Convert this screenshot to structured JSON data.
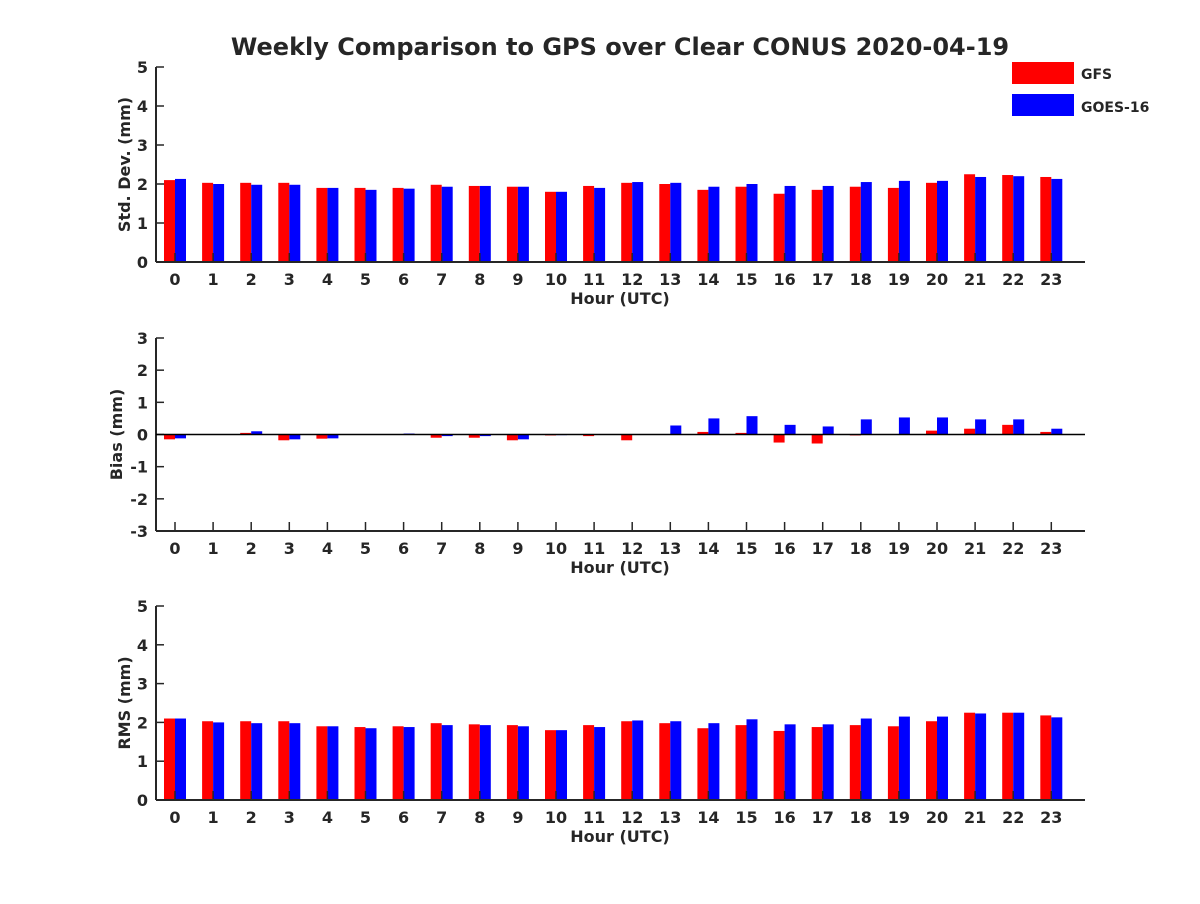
{
  "figure": {
    "title": "Weekly Comparison to GPS over Clear CONUS 2020-04-19"
  },
  "legend": {
    "placement": "top-right",
    "entries": [
      {
        "name": "GFS",
        "color": "#ff0000"
      },
      {
        "name": "GOES-16",
        "color": "#0000ff"
      }
    ]
  },
  "chart_data": [
    {
      "type": "bar",
      "xlabel": "Hour (UTC)",
      "ylabel": "Std. Dev. (mm)",
      "ylim": [
        0,
        5
      ],
      "yticks": [
        0,
        1,
        2,
        3,
        4,
        5
      ],
      "categories": [
        "0",
        "1",
        "2",
        "3",
        "4",
        "5",
        "6",
        "7",
        "8",
        "9",
        "10",
        "11",
        "12",
        "13",
        "14",
        "15",
        "16",
        "17",
        "18",
        "19",
        "20",
        "21",
        "22",
        "23"
      ],
      "series": [
        {
          "name": "GFS",
          "color": "#ff0000",
          "values": [
            2.1,
            2.03,
            2.03,
            2.03,
            1.9,
            1.9,
            1.9,
            1.98,
            1.95,
            1.93,
            1.8,
            1.95,
            2.03,
            2.0,
            1.85,
            1.93,
            1.75,
            1.85,
            1.93,
            1.9,
            2.03,
            2.25,
            2.23,
            2.18
          ]
        },
        {
          "name": "GOES-16",
          "color": "#0000ff",
          "values": [
            2.13,
            2.0,
            1.98,
            1.98,
            1.9,
            1.85,
            1.88,
            1.93,
            1.95,
            1.93,
            1.8,
            1.9,
            2.05,
            2.03,
            1.93,
            2.0,
            1.95,
            1.95,
            2.05,
            2.08,
            2.08,
            2.18,
            2.2,
            2.13
          ]
        }
      ]
    },
    {
      "type": "bar",
      "xlabel": "Hour (UTC)",
      "ylabel": "Bias (mm)",
      "ylim": [
        -3,
        3
      ],
      "yticks": [
        -3,
        -2,
        -1,
        0,
        1,
        2,
        3
      ],
      "categories": [
        "0",
        "1",
        "2",
        "3",
        "4",
        "5",
        "6",
        "7",
        "8",
        "9",
        "10",
        "11",
        "12",
        "13",
        "14",
        "15",
        "16",
        "17",
        "18",
        "19",
        "20",
        "21",
        "22",
        "23"
      ],
      "series": [
        {
          "name": "GFS",
          "color": "#ff0000",
          "values": [
            -0.15,
            0.0,
            0.05,
            -0.18,
            -0.13,
            0.0,
            0.0,
            -0.1,
            -0.1,
            -0.18,
            -0.03,
            -0.05,
            -0.18,
            0.0,
            0.08,
            0.05,
            -0.25,
            -0.28,
            -0.03,
            0.0,
            0.12,
            0.18,
            0.3,
            0.08
          ]
        },
        {
          "name": "GOES-16",
          "color": "#0000ff",
          "values": [
            -0.12,
            0.0,
            0.1,
            -0.15,
            -0.12,
            0.0,
            0.03,
            -0.05,
            -0.05,
            -0.15,
            -0.02,
            0.0,
            0.0,
            0.28,
            0.5,
            0.57,
            0.3,
            0.25,
            0.47,
            0.53,
            0.53,
            0.47,
            0.47,
            0.18
          ]
        }
      ]
    },
    {
      "type": "bar",
      "xlabel": "Hour (UTC)",
      "ylabel": "RMS (mm)",
      "ylim": [
        0,
        5
      ],
      "yticks": [
        0,
        1,
        2,
        3,
        4,
        5
      ],
      "categories": [
        "0",
        "1",
        "2",
        "3",
        "4",
        "5",
        "6",
        "7",
        "8",
        "9",
        "10",
        "11",
        "12",
        "13",
        "14",
        "15",
        "16",
        "17",
        "18",
        "19",
        "20",
        "21",
        "22",
        "23"
      ],
      "series": [
        {
          "name": "GFS",
          "color": "#ff0000",
          "values": [
            2.1,
            2.03,
            2.03,
            2.03,
            1.9,
            1.88,
            1.9,
            1.98,
            1.95,
            1.93,
            1.8,
            1.93,
            2.03,
            1.98,
            1.85,
            1.93,
            1.78,
            1.88,
            1.93,
            1.9,
            2.03,
            2.25,
            2.25,
            2.18
          ]
        },
        {
          "name": "GOES-16",
          "color": "#0000ff",
          "values": [
            2.1,
            2.0,
            1.98,
            1.98,
            1.9,
            1.85,
            1.88,
            1.93,
            1.93,
            1.9,
            1.8,
            1.88,
            2.05,
            2.03,
            1.98,
            2.08,
            1.95,
            1.95,
            2.1,
            2.15,
            2.15,
            2.23,
            2.25,
            2.13
          ]
        }
      ]
    }
  ]
}
